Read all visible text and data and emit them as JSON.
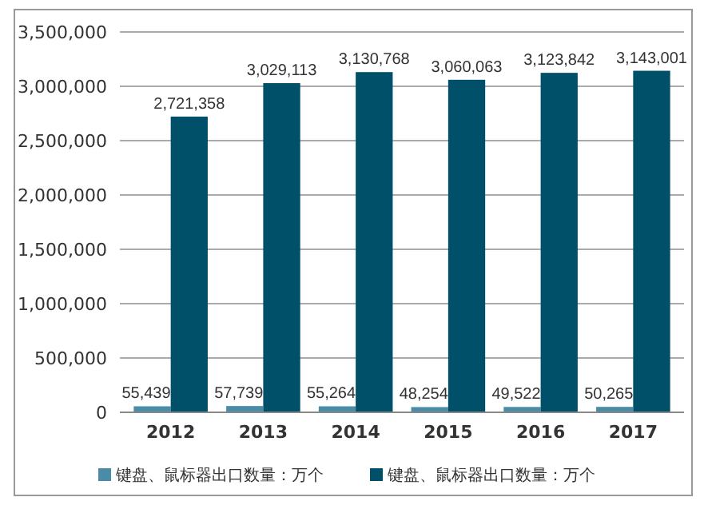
{
  "chart_data": {
    "type": "bar",
    "categories": [
      "2012",
      "2013",
      "2014",
      "2015",
      "2016",
      "2017"
    ],
    "series": [
      {
        "name": "键盘、鼠标器出口数量：万个",
        "color": "#4a8ba8",
        "values": [
          55439,
          57739,
          55264,
          48254,
          49522,
          50265
        ],
        "value_labels": [
          "55,439",
          "57,739",
          "55,264",
          "48,254",
          "49,522",
          "50,265"
        ]
      },
      {
        "name": "键盘、鼠标器出口数量：万个",
        "color": "#00506a",
        "values": [
          2721358,
          3029113,
          3130768,
          3060063,
          3123842,
          3143001
        ],
        "value_labels": [
          "2,721,358",
          "3,029,113",
          "3,130,768",
          "3,060,063",
          "3,123,842",
          "3,143,001"
        ]
      }
    ],
    "ylim": [
      0,
      3500000
    ],
    "yticks": [
      {
        "value": 0,
        "label": "0"
      },
      {
        "value": 500000,
        "label": "500,000"
      },
      {
        "value": 1000000,
        "label": "1,000,000"
      },
      {
        "value": 1500000,
        "label": "1,500,000"
      },
      {
        "value": 2000000,
        "label": "2,000,000"
      },
      {
        "value": 2500000,
        "label": "2,500,000"
      },
      {
        "value": 3000000,
        "label": "3,000,000"
      },
      {
        "value": 3500000,
        "label": "3,500,000"
      }
    ],
    "grid": "y",
    "legend": "bottom"
  }
}
